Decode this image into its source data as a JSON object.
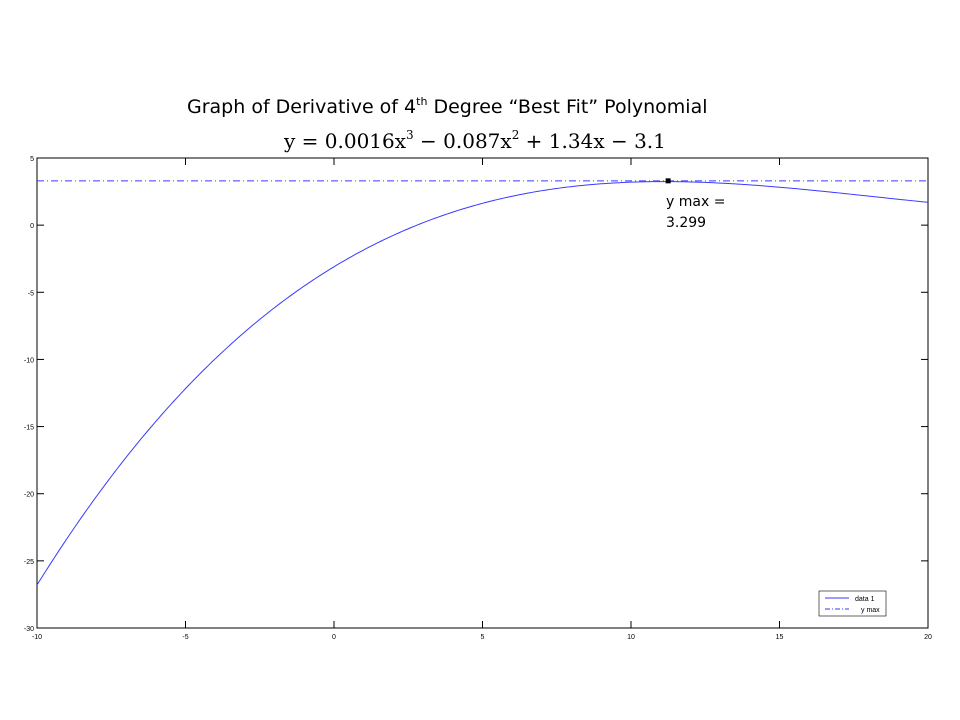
{
  "title": {
    "prefix": "Graph of Derivative  of 4",
    "sup": "th",
    "suffix": " Degree “Best Fit” Polynomial"
  },
  "equation": {
    "part1": "y = 0.0016x",
    "exp1": "3",
    "part2": " − 0.087x",
    "exp2": "2",
    "part3": " + 1.34x − 3.1"
  },
  "annotation": {
    "line1": "y max =",
    "line2": "3.299"
  },
  "chart_data": {
    "type": "line",
    "xlim": [
      -10,
      20
    ],
    "ylim": [
      -30,
      5
    ],
    "x_ticks": [
      -10,
      -5,
      0,
      5,
      10,
      15,
      20
    ],
    "y_ticks": [
      5,
      0,
      -5,
      -10,
      -15,
      -20,
      -25,
      -30
    ],
    "grid": false,
    "legend_position": "bottom-right",
    "series": [
      {
        "name": "data 1",
        "style": "solid",
        "color": "#3a3aff",
        "coefficients": [
          0.0016,
          -0.087,
          1.34,
          -3.1
        ],
        "x": [
          -10,
          -8,
          -6,
          -4,
          -2,
          0,
          2,
          4,
          6,
          8,
          10,
          11.25,
          12,
          14,
          16,
          18,
          20
        ],
        "y": [
          -26.9,
          -20.81,
          -15.66,
          -10.62,
          -6.12,
          -3.1,
          -0.68,
          1.07,
          2.25,
          2.95,
          3.2,
          3.299,
          3.29,
          3.17,
          2.69,
          2.18,
          1.99
        ]
      },
      {
        "name": "y max",
        "style": "dashdot",
        "color": "#3a3aff",
        "x": [
          -10,
          20
        ],
        "y": [
          3.299,
          3.299
        ]
      }
    ],
    "marker": {
      "x": 11.25,
      "y": 3.299,
      "label": "y max = 3.299"
    }
  }
}
